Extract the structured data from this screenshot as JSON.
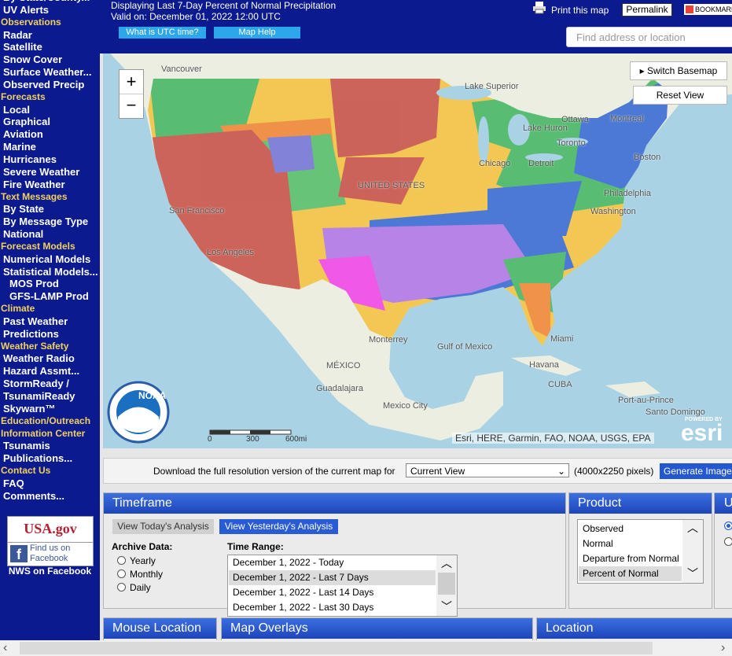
{
  "sidebar": {
    "sections": [
      {
        "links": [
          "By State/County...",
          "UV Alerts"
        ]
      },
      {
        "heading": "Observations",
        "links": [
          "Radar",
          "Satellite",
          "Snow Cover",
          "Surface Weather...",
          "Observed Precip"
        ]
      },
      {
        "heading": "Forecasts",
        "links": [
          "Local",
          "Graphical",
          "Aviation",
          "Marine",
          "Hurricanes",
          "Severe Weather",
          "Fire Weather"
        ]
      },
      {
        "heading": "Text Messages",
        "links": [
          "By State",
          "By Message Type",
          "National"
        ]
      },
      {
        "heading": "Forecast Models",
        "links": [
          "Numerical Models",
          "Statistical Models..."
        ],
        "sublinks": [
          "MOS Prod",
          "GFS-LAMP Prod"
        ]
      },
      {
        "heading": "Climate",
        "links": [
          "Past Weather",
          "Predictions"
        ]
      },
      {
        "heading": "Weather Safety",
        "links": [
          "Weather Radio",
          "Hazard Assmt...",
          "StormReady / TsunamiReady",
          "Skywarn™"
        ]
      },
      {
        "heading": "Education/Outreach",
        "links": []
      },
      {
        "heading": "Information Center",
        "links": [
          "Tsunamis",
          "Publications..."
        ]
      },
      {
        "heading": "Contact Us",
        "links": [
          "FAQ",
          "Comments..."
        ]
      }
    ],
    "badges": {
      "usa": "USA.gov",
      "facebook": "Find us on Facebook",
      "caption": "NWS on Facebook"
    }
  },
  "header": {
    "title": "Displaying Last 7-Day Percent of Normal Precipitation",
    "valid": "Valid on: December 01, 2022 12:00 UTC",
    "buttons": [
      "What is UTC time?",
      "Map Help"
    ],
    "print": "Print this map",
    "permalink": "Permalink",
    "bookmark": "BOOKMARK",
    "search_placeholder": "Find address or location"
  },
  "map": {
    "zoom_in": "+",
    "zoom_out": "−",
    "switch_basemap": "Switch Basemap",
    "reset_view": "Reset View",
    "labels": [
      "Vancouver",
      "Ottawa",
      "Montreal",
      "Lake Superior",
      "Lake Huron",
      "Toronto",
      "Detroit",
      "Chicago",
      "Boston",
      "Philadelphia",
      "Washington",
      "UNITED STATES",
      "San Francisco",
      "Los Angeles",
      "Monterrey",
      "Gulf of Mexico",
      "Miami",
      "Havana",
      "CUBA",
      "MÉXICO",
      "Guadalajara",
      "Mexico City",
      "Port-au-Prince",
      "Santo Domingo"
    ],
    "scale": [
      "0",
      "300",
      "600mi"
    ],
    "attribution": "Esri, HERE, Garmin, FAO, NOAA, USGS, EPA",
    "powered_by": "POWERED BY",
    "esri": "esri",
    "noaa": "NOAA"
  },
  "download": {
    "text": "Download the full resolution version of the current map for",
    "select": "Current View",
    "size": "(4000x2250 pixels)",
    "button": "Generate Image"
  },
  "timeframe": {
    "title": "Timeframe",
    "today": "View Today's Analysis",
    "yesterday": "View Yesterday's Analysis",
    "archive_label": "Archive Data:",
    "archive_options": [
      "Yearly",
      "Monthly",
      "Daily"
    ],
    "range_label": "Time Range:",
    "ranges": [
      "December 1, 2022 - Today",
      "December 1, 2022 - Last 7 Days",
      "December 1, 2022 - Last 14 Days",
      "December 1, 2022 - Last 30 Days"
    ],
    "selected": 1
  },
  "product": {
    "title": "Product",
    "options": [
      "Observed",
      "Normal",
      "Departure from Normal",
      "Percent of Normal"
    ],
    "selected": 3
  },
  "units": {
    "title": "Units"
  },
  "bottom_panels": [
    "Mouse Location",
    "Map Overlays",
    "Location"
  ]
}
